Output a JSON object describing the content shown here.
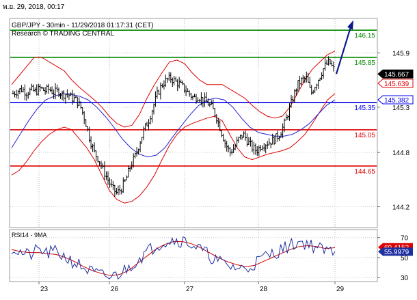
{
  "timestamp": "พ.ย. 29, 2018, 00:17",
  "header": {
    "line1": "GBP/JPY - 30min - 11/29/2018 01:17:31 (CET)",
    "line2": "Research © TRADING CENTRAL"
  },
  "colors": {
    "support": "#dd0000",
    "resistance": "#008800",
    "pivot": "#0000ee",
    "price": "#000000",
    "bb": "#dd0000",
    "ma": "#2222cc",
    "arrow": "#0a1a8c"
  },
  "chart_data": [
    {
      "type": "candlestick",
      "title": "GBP/JPY - 30min - 11/29/2018 01:17:31 (CET)",
      "ylim": [
        143.97,
        146.28
      ],
      "y_ticks": [
        144.2,
        144.8,
        145.3,
        145.9
      ],
      "x_ticks": [
        "23",
        "26",
        "27",
        "28",
        "29"
      ],
      "levels": [
        {
          "label": "146.15",
          "value": 146.15,
          "kind": "resistance"
        },
        {
          "label": "145.85",
          "value": 145.85,
          "kind": "resistance"
        },
        {
          "label": "145.35",
          "value": 145.35,
          "kind": "pivot"
        },
        {
          "label": "145.05",
          "value": 145.05,
          "kind": "support"
        },
        {
          "label": "144.65",
          "value": 144.65,
          "kind": "support"
        }
      ],
      "price_tags": [
        {
          "label": "145.667",
          "value": 145.667,
          "kind": "last"
        },
        {
          "label": "145.639",
          "value": 145.639,
          "kind": "bb"
        },
        {
          "label": "145.382",
          "value": 145.382,
          "kind": "ma"
        }
      ],
      "close_path": [
        145.45,
        145.48,
        145.5,
        145.46,
        145.49,
        145.47,
        145.51,
        145.48,
        145.5,
        145.46,
        145.48,
        145.44,
        145.45,
        145.4,
        145.38,
        145.3,
        145.15,
        144.95,
        144.8,
        144.72,
        144.6,
        144.5,
        144.4,
        144.35,
        144.4,
        144.5,
        144.65,
        144.75,
        144.9,
        145.05,
        145.15,
        145.3,
        145.45,
        145.55,
        145.6,
        145.62,
        145.58,
        145.55,
        145.5,
        145.45,
        145.4,
        145.42,
        145.38,
        145.35,
        145.3,
        145.2,
        145.05,
        144.9,
        144.8,
        144.85,
        144.95,
        145.0,
        144.92,
        144.85,
        144.82,
        144.88,
        144.9,
        144.92,
        144.95,
        145.0,
        145.1,
        145.25,
        145.4,
        145.55,
        145.6,
        145.62,
        145.45,
        145.55,
        145.65,
        145.75,
        145.8,
        145.72
      ],
      "bollinger": {
        "upper": [
          145.55,
          145.65,
          145.75,
          145.85,
          145.85,
          145.8,
          145.75,
          145.7,
          145.6,
          145.52,
          145.45,
          145.38,
          145.3,
          145.2,
          145.12,
          145.08,
          145.1,
          145.22,
          145.4,
          145.55,
          145.68,
          145.8,
          145.82,
          145.78,
          145.68,
          145.6,
          145.55,
          145.55,
          145.55,
          145.5,
          145.45,
          145.4,
          145.32,
          145.25,
          145.2,
          145.18,
          145.2,
          145.3,
          145.45,
          145.6,
          145.72,
          145.8,
          145.88,
          145.92
        ],
        "lower": [
          144.55,
          144.6,
          144.7,
          144.82,
          144.92,
          145.0,
          145.05,
          145.08,
          145.05,
          144.95,
          144.85,
          144.72,
          144.55,
          144.38,
          144.28,
          144.24,
          144.26,
          144.32,
          144.42,
          144.55,
          144.72,
          144.88,
          145.0,
          145.08,
          145.12,
          145.15,
          145.18,
          145.2,
          145.15,
          145.0,
          144.85,
          144.75,
          144.72,
          144.75,
          144.78,
          144.8,
          144.82,
          144.85,
          144.92,
          145.0,
          145.12,
          145.25,
          145.38,
          145.45
        ]
      },
      "moving_average": [
        144.85,
        145.0,
        145.15,
        145.28,
        145.38,
        145.42,
        145.45,
        145.44,
        145.42,
        145.38,
        145.3,
        145.2,
        145.08,
        144.95,
        144.85,
        144.78,
        144.75,
        144.77,
        144.85,
        144.98,
        145.1,
        145.22,
        145.32,
        145.38,
        145.4,
        145.38,
        145.3,
        145.18,
        145.08,
        145.02,
        145.0,
        144.98,
        144.98,
        145.0,
        145.05,
        145.12,
        145.22,
        145.32,
        145.38
      ]
    },
    {
      "type": "line",
      "title": "RSI14 - 9MA",
      "ylim": [
        26,
        78
      ],
      "y_ticks": [
        30,
        50,
        70
      ],
      "price_tags": [
        {
          "label": "60.4152",
          "value": 60.4152,
          "kind": "ma"
        },
        {
          "label": "55.9979",
          "value": 55.9979,
          "kind": "rsi"
        }
      ]
    }
  ]
}
